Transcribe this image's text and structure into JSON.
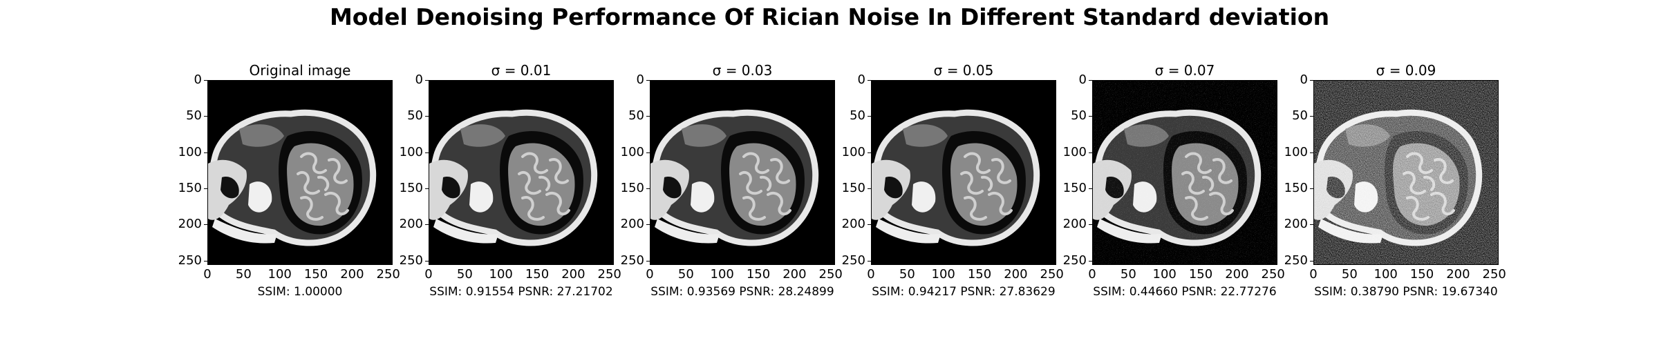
{
  "figure": {
    "title": "Model Denoising Performance Of Rician Noise In Different Standard deviation"
  },
  "axes": {
    "y_ticks": [
      "0",
      "50",
      "100",
      "150",
      "200",
      "250"
    ],
    "x_ticks": [
      "0",
      "50",
      "100",
      "150",
      "200",
      "250"
    ]
  },
  "panels": [
    {
      "title": "Original image",
      "caption": "SSIM: 1.00000",
      "noise_level": 0.0
    },
    {
      "title": "σ = 0.01",
      "caption": "SSIM: 0.91554 PSNR: 27.21702",
      "noise_level": 0.01
    },
    {
      "title": "σ = 0.03",
      "caption": "SSIM: 0.93569 PSNR: 28.24899",
      "noise_level": 0.03
    },
    {
      "title": "σ = 0.05",
      "caption": "SSIM: 0.94217 PSNR: 27.83629",
      "noise_level": 0.05
    },
    {
      "title": "σ = 0.07",
      "caption": "SSIM: 0.44660 PSNR: 22.77276",
      "noise_level": 0.07
    },
    {
      "title": "σ = 0.09",
      "caption": "SSIM: 0.38790 PSNR: 19.67340",
      "noise_level": 0.09
    }
  ]
}
